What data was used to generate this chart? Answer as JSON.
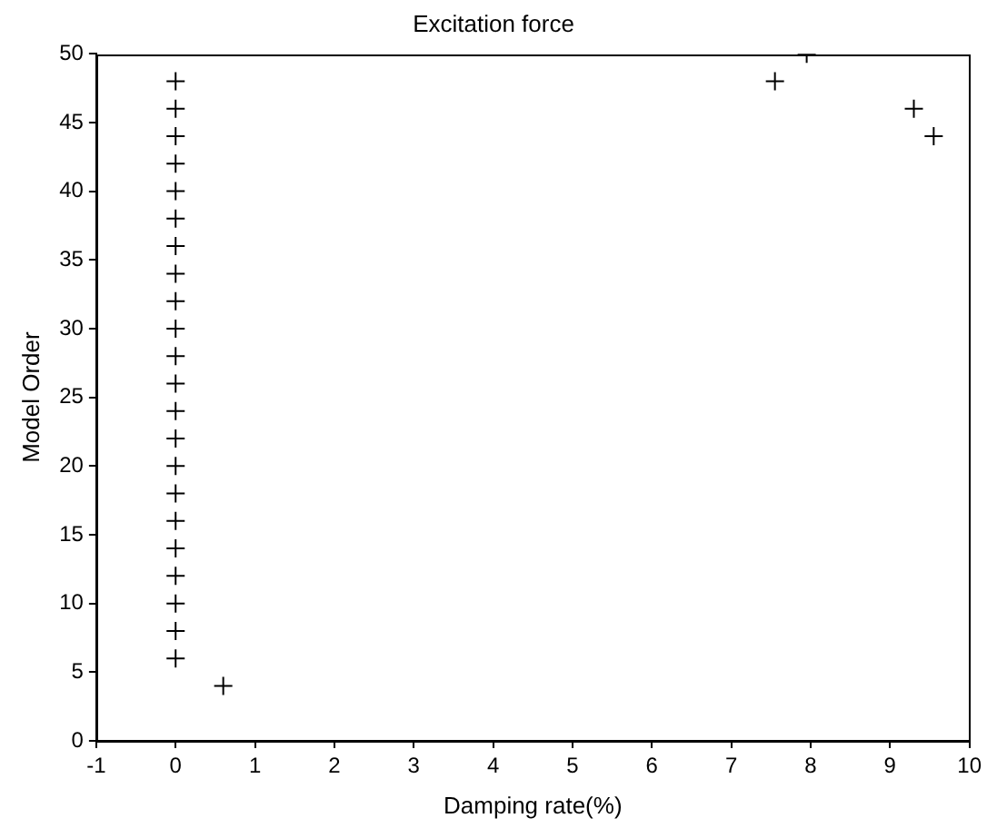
{
  "chart_data": {
    "type": "scatter",
    "title": "Excitation force",
    "xlabel": "Damping rate(%)",
    "ylabel": "Model Order",
    "x": [
      0,
      0,
      0,
      0,
      0,
      0,
      0,
      0,
      0,
      0,
      0,
      0,
      0,
      0,
      0,
      0,
      0,
      0,
      0,
      0,
      0,
      0,
      0.6,
      7.55,
      7.95,
      9.3,
      9.55
    ],
    "series": [
      {
        "color": "#000000",
        "values": [
          6,
          8,
          10,
          12,
          14,
          16,
          18,
          20,
          22,
          24,
          26,
          28,
          30,
          32,
          34,
          36,
          38,
          40,
          42,
          44,
          46,
          48,
          4,
          48,
          50,
          46,
          44
        ]
      }
    ],
    "xlim": [
      -1,
      10
    ],
    "xticks": [
      -1,
      0,
      1,
      2,
      3,
      4,
      5,
      6,
      7,
      8,
      9,
      10
    ],
    "ylim": [
      0,
      50
    ],
    "yticks": [
      0,
      5,
      10,
      15,
      20,
      25,
      30,
      35,
      40,
      45,
      50
    ],
    "grid": false,
    "legend": false,
    "marker": "cross"
  }
}
